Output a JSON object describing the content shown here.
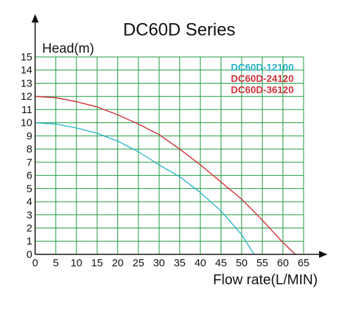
{
  "chart_data": {
    "type": "line",
    "title": "DC60D Series",
    "y_label": "Head(m)",
    "x_label": "Flow rate(L/MIN)",
    "xlim": [
      0,
      65
    ],
    "ylim": [
      0,
      15
    ],
    "xticks": [
      0,
      5,
      10,
      15,
      20,
      25,
      30,
      35,
      40,
      45,
      50,
      55,
      60,
      65
    ],
    "yticks": [
      0,
      1,
      2,
      3,
      4,
      5,
      6,
      7,
      8,
      9,
      10,
      11,
      12,
      13,
      14,
      15
    ],
    "grid": true,
    "grid_color": "#1a9a3a",
    "legend": "upper right",
    "series": [
      {
        "name": "DC60D-12100",
        "color": "#22b0c8",
        "x": [
          0,
          5,
          10,
          15,
          20,
          25,
          30,
          35,
          40,
          45,
          50,
          53
        ],
        "values": [
          10,
          9.9,
          9.6,
          9.2,
          8.6,
          7.8,
          6.8,
          5.9,
          4.7,
          3.3,
          1.5,
          0
        ]
      },
      {
        "name": "DC60D-24120",
        "color": "#d0323a",
        "x": [
          0,
          5,
          10,
          15,
          20,
          25,
          30,
          35,
          40,
          45,
          50,
          55,
          60,
          63
        ],
        "values": [
          12,
          11.9,
          11.6,
          11.2,
          10.6,
          9.9,
          9.1,
          8.0,
          6.8,
          5.5,
          4.2,
          2.6,
          0.9,
          0
        ]
      },
      {
        "name": "DC60D-36120",
        "color": "#d0323a",
        "x": [
          0,
          5,
          10,
          15,
          20,
          25,
          30,
          35,
          40,
          45,
          50,
          55,
          60,
          63
        ],
        "values": [
          12,
          11.9,
          11.6,
          11.2,
          10.6,
          9.9,
          9.1,
          8.0,
          6.8,
          5.5,
          4.2,
          2.6,
          0.9,
          0
        ]
      }
    ]
  }
}
